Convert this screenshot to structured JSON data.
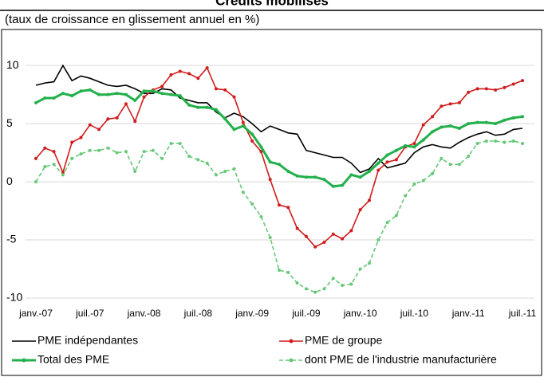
{
  "chart_data": {
    "type": "line",
    "title": "Crédits mobilisés",
    "subtitle": "(taux de croissance en glissement annuel en %)",
    "categories": [
      "janv.-07",
      null,
      null,
      null,
      null,
      null,
      "juil.-07",
      null,
      null,
      null,
      null,
      null,
      "janv.-08",
      null,
      null,
      null,
      null,
      null,
      "juil.-08",
      null,
      null,
      null,
      null,
      null,
      "janv.-09",
      null,
      null,
      null,
      null,
      null,
      "juil.-09",
      null,
      null,
      null,
      null,
      null,
      "janv.-10",
      null,
      null,
      null,
      null,
      null,
      "juil.-10",
      null,
      null,
      null,
      null,
      null,
      "janv.-11",
      null,
      null,
      null,
      null,
      null,
      "juil.-11"
    ],
    "ylim": [
      -10,
      12
    ],
    "yticks": [
      -10,
      -5,
      0,
      5,
      10
    ],
    "grid": true,
    "legend": "bottom",
    "series": [
      {
        "name": "PME indépendantes",
        "color": "#000000",
        "dash": false,
        "markers": false,
        "values": [
          8.3,
          8.5,
          8.6,
          10.0,
          8.7,
          9.1,
          8.9,
          8.6,
          8.3,
          8.2,
          8.3,
          8.0,
          7.6,
          7.6,
          8.0,
          7.9,
          7.2,
          7.0,
          6.8,
          6.8,
          6.0,
          5.5,
          5.9,
          5.6,
          5.0,
          4.3,
          4.8,
          4.5,
          4.2,
          4.1,
          2.7,
          2.5,
          2.3,
          2.1,
          2.1,
          1.6,
          0.8,
          1.1,
          2.0,
          1.2,
          1.4,
          1.6,
          2.5,
          3.0,
          3.2,
          3.0,
          2.9,
          3.4,
          3.8,
          4.1,
          4.3,
          4.0,
          4.1,
          4.5,
          4.6
        ]
      },
      {
        "name": "PME de groupe",
        "color": "#d01c1c",
        "dash": false,
        "markers": true,
        "values": [
          2.0,
          2.9,
          2.6,
          0.8,
          3.4,
          3.8,
          4.9,
          4.5,
          5.4,
          5.5,
          6.7,
          5.2,
          7.3,
          7.9,
          8.2,
          9.2,
          9.5,
          9.3,
          8.9,
          9.8,
          8.0,
          7.9,
          7.3,
          5.1,
          3.5,
          2.6,
          0.2,
          -2.0,
          -2.2,
          -4.0,
          -4.7,
          -5.6,
          -5.2,
          -4.5,
          -4.9,
          -4.2,
          -2.4,
          -1.6,
          1.0,
          1.7,
          1.9,
          3.0,
          3.3,
          4.9,
          5.6,
          6.5,
          6.7,
          6.8,
          7.7,
          8.0,
          8.0,
          7.9,
          8.1,
          8.4,
          8.7
        ]
      },
      {
        "name": "Total des PME",
        "color": "#22b04b",
        "dash": false,
        "markers": true,
        "values": [
          6.8,
          7.2,
          7.2,
          7.6,
          7.4,
          7.8,
          7.9,
          7.5,
          7.5,
          7.6,
          7.5,
          7.0,
          7.8,
          7.8,
          7.6,
          7.5,
          7.4,
          6.6,
          6.4,
          6.4,
          6.2,
          5.4,
          4.5,
          4.8,
          4.1,
          3.0,
          1.7,
          1.5,
          0.9,
          0.5,
          0.4,
          0.4,
          0.2,
          -0.4,
          -0.3,
          0.6,
          0.4,
          0.9,
          1.6,
          2.3,
          2.7,
          3.1,
          3.0,
          3.6,
          4.3,
          4.7,
          4.8,
          4.6,
          5.0,
          5.1,
          5.1,
          5.0,
          5.3,
          5.5,
          5.6
        ]
      },
      {
        "name": "dont PME de l'industrie manufacturière",
        "color": "#66c878",
        "dash": true,
        "markers": true,
        "values": [
          0.0,
          1.3,
          1.5,
          0.6,
          2.0,
          2.4,
          2.7,
          2.7,
          2.9,
          2.5,
          2.6,
          0.9,
          2.6,
          2.7,
          2.0,
          3.3,
          3.3,
          2.2,
          1.9,
          1.6,
          0.6,
          0.9,
          1.1,
          -0.9,
          -1.9,
          -3.0,
          -4.8,
          -7.6,
          -7.8,
          -8.7,
          -9.2,
          -9.5,
          -9.2,
          -8.3,
          -8.9,
          -8.8,
          -7.5,
          -7.0,
          -5.0,
          -3.5,
          -2.9,
          -1.2,
          -0.2,
          0.1,
          0.7,
          2.0,
          1.5,
          1.5,
          2.2,
          3.3,
          3.5,
          3.5,
          3.4,
          3.5,
          3.3
        ]
      }
    ]
  }
}
